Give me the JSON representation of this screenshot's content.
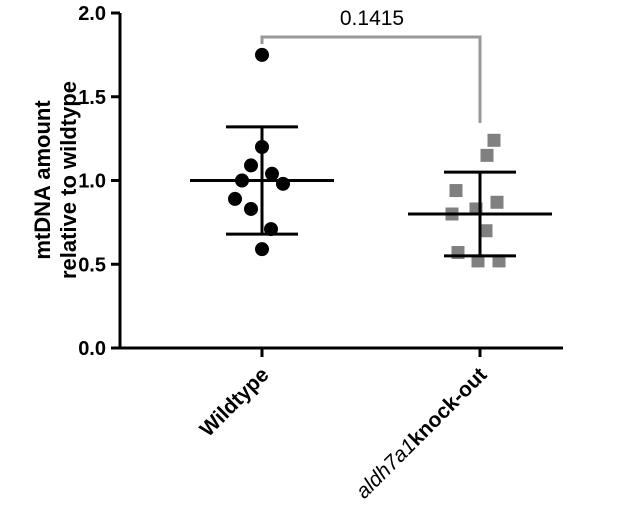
{
  "chart_data": {
    "type": "scatter",
    "title": "",
    "ylabel_line1": "mtDNA amount",
    "ylabel_line2": "relative to wildtype",
    "xlabel": "",
    "ylim": [
      0.0,
      2.0
    ],
    "yticks": [
      "0.0",
      "0.5",
      "1.0",
      "1.5",
      "2.0"
    ],
    "ytick_values": [
      0.0,
      0.5,
      1.0,
      1.5,
      2.0
    ],
    "grid": false,
    "categories": [
      {
        "label_italic": "",
        "label_bold": "Wildtype"
      },
      {
        "label_italic": "aldh7a1",
        "label_bold": "knock-out"
      }
    ],
    "series": [
      {
        "marker": "circle",
        "color": "#000000",
        "values": [
          1.75,
          1.2,
          1.09,
          1.0,
          1.04,
          0.98,
          0.83,
          0.71,
          0.89,
          0.59
        ],
        "mean": 1.0,
        "sd_upper": 1.32,
        "sd_lower": 0.68
      },
      {
        "marker": "square",
        "color": "#808080",
        "values": [
          1.24,
          1.15,
          0.94,
          0.87,
          0.83,
          0.8,
          0.7,
          0.57,
          0.52,
          0.52
        ],
        "mean": 0.8,
        "sd_upper": 1.05,
        "sd_lower": 0.55
      }
    ],
    "comparison": {
      "label": "0.1415",
      "color": "#999999"
    }
  }
}
